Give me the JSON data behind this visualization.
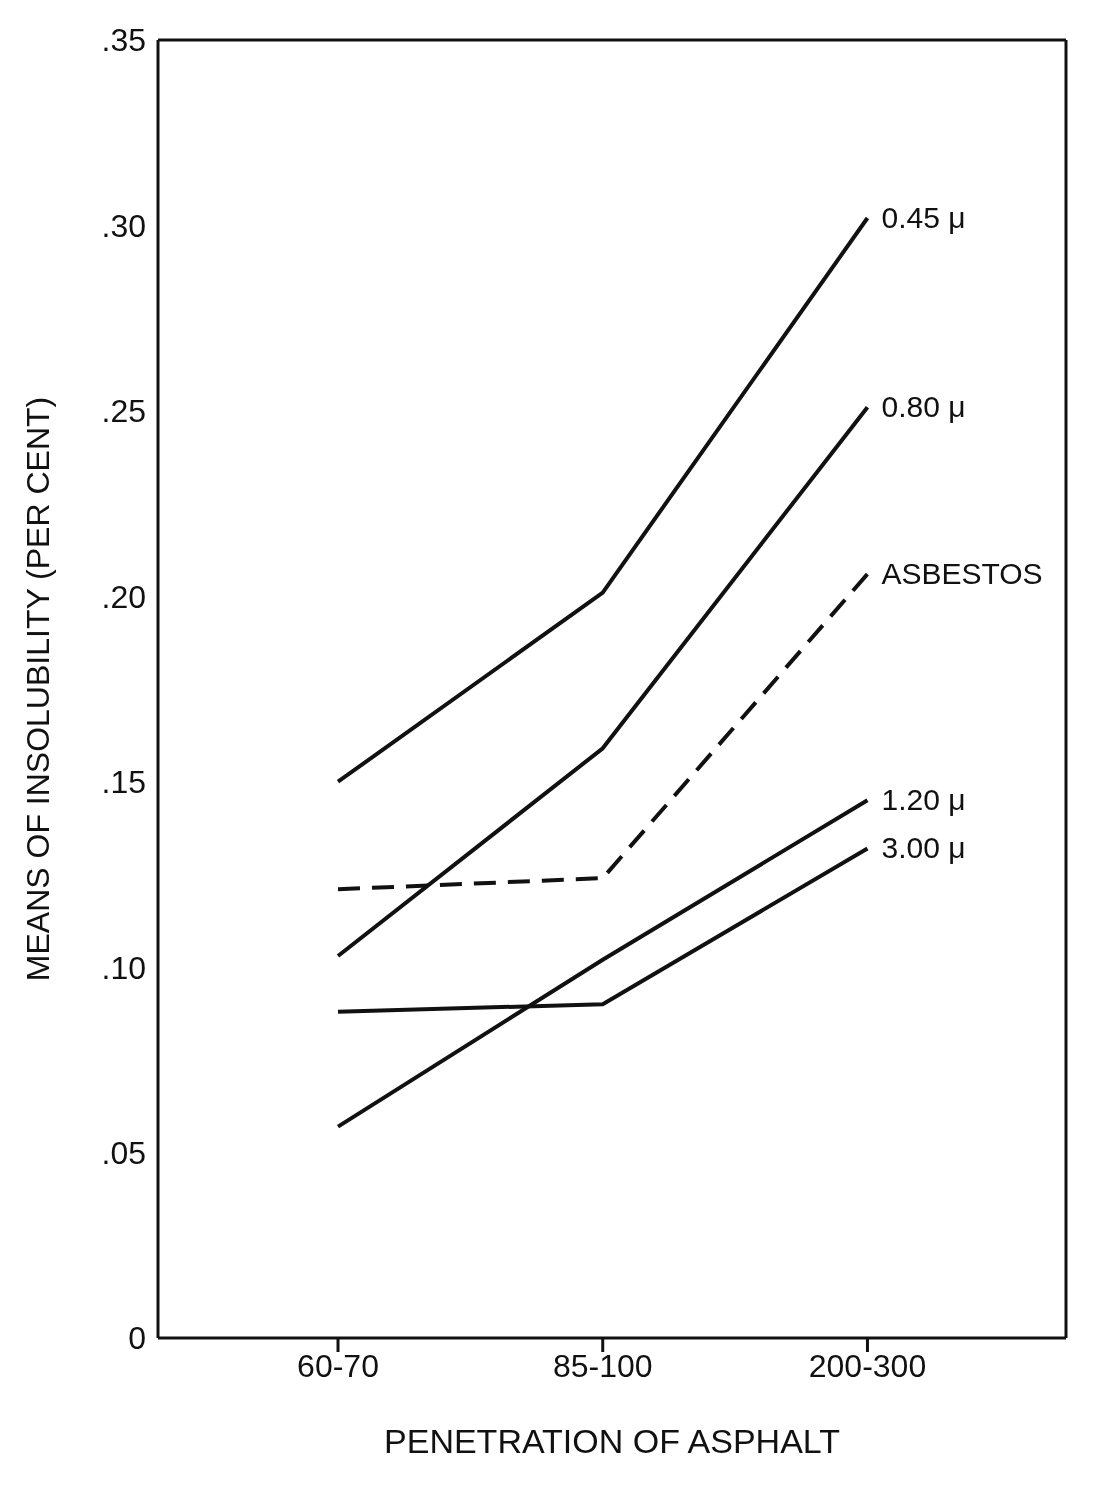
{
  "chart_data": {
    "type": "line",
    "xlabel": "PENETRATION  OF  ASPHALT",
    "ylabel": "MEANS  OF  INSOLUBILITY  (PER  CENT)",
    "categories": [
      "60-70",
      "85-100",
      "200-300"
    ],
    "series": [
      {
        "name": "0.45 μ",
        "color": "#111111",
        "values": [
          0.15,
          0.201,
          0.302
        ]
      },
      {
        "name": "0.80 μ",
        "color": "#111111",
        "values": [
          0.103,
          0.159,
          0.251
        ]
      },
      {
        "name": "ASBESTOS",
        "color": "#111111",
        "values": [
          0.121,
          0.124,
          0.206
        ],
        "line_style": "dashed"
      },
      {
        "name": "1.20 μ",
        "color": "#111111",
        "values": [
          0.057,
          0.102,
          0.145
        ]
      },
      {
        "name": "3.00 μ",
        "color": "#111111",
        "values": [
          0.088,
          0.09,
          0.132
        ]
      }
    ],
    "ylim": [
      0,
      0.35
    ],
    "yticks": [
      0,
      {
        "value": 0.05,
        "label": ".05"
      },
      {
        "value": 0.1,
        "label": ".10"
      },
      {
        "value": 0.15,
        "label": ".15"
      },
      {
        "value": 0.2,
        "label": ".20"
      },
      {
        "value": 0.25,
        "label": ".25"
      },
      {
        "value": 0.3,
        "label": ".30"
      },
      {
        "value": 0.35,
        "label": ".35"
      }
    ],
    "grid": false,
    "legend": false,
    "marker": "none",
    "line_style": "solid"
  }
}
